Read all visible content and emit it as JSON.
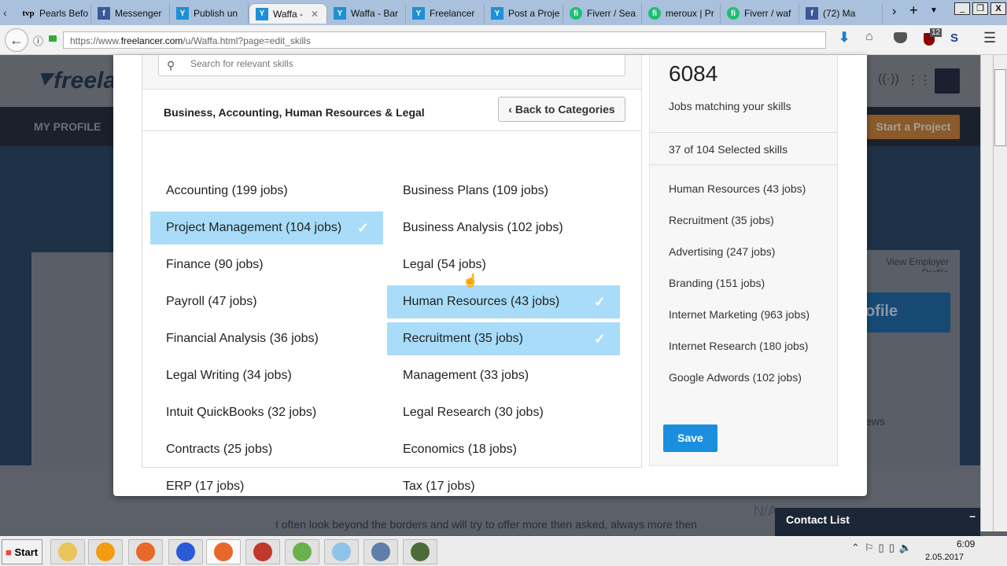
{
  "browser": {
    "tabs": [
      {
        "title": "Pearls Befo",
        "icon": "wp"
      },
      {
        "title": "Messenger",
        "icon": "facebook"
      },
      {
        "title": "Publish un",
        "icon": "freelancer"
      },
      {
        "title": "Waffa -",
        "icon": "freelancer",
        "active": true
      },
      {
        "title": "Waffa - Bar",
        "icon": "freelancer"
      },
      {
        "title": "Freelancer",
        "icon": "freelancer"
      },
      {
        "title": "Post a Proje",
        "icon": "freelancer"
      },
      {
        "title": "Fiverr / Sea",
        "icon": "fiverr"
      },
      {
        "title": "meroux | Pr",
        "icon": "fiverr"
      },
      {
        "title": "Fiverr / waf",
        "icon": "fiverr"
      },
      {
        "title": "(72) Ma",
        "icon": "facebook"
      }
    ],
    "url_prefix": "https://www.",
    "url_domain": "freelancer.com",
    "url_path": "/u/Waffa.html?page=edit_skills",
    "addon_badge": "12"
  },
  "background": {
    "nav_my_profile": "MY PROFILE",
    "start_project": "Start a Project",
    "view_employer_profile": "View Employer Profile",
    "profile_button": "ofile",
    "reviews": "ews",
    "about_text": "I often look beyond the borders and will try to offer more then asked, always more then",
    "na": "N/A",
    "contact_list": "Contact List"
  },
  "modal": {
    "search_placeholder": "Search for relevant skills",
    "category_title": "Business, Accounting, Human Resources & Legal",
    "back_label": "Back to Categories",
    "skills": [
      {
        "label": "Accounting (199 jobs)",
        "selected": false
      },
      {
        "label": "Business Plans (109 jobs)",
        "selected": false
      },
      {
        "label": "Project Management (104 jobs)",
        "selected": true
      },
      {
        "label": "Business Analysis (102 jobs)",
        "selected": false
      },
      {
        "label": "Finance (90 jobs)",
        "selected": false
      },
      {
        "label": "Legal (54 jobs)",
        "selected": false
      },
      {
        "label": "Payroll (47 jobs)",
        "selected": false
      },
      {
        "label": "Human Resources (43 jobs)",
        "selected": true
      },
      {
        "label": "Financial Analysis (36 jobs)",
        "selected": false
      },
      {
        "label": "Recruitment (35 jobs)",
        "selected": true
      },
      {
        "label": "Legal Writing (34 jobs)",
        "selected": false
      },
      {
        "label": "Management (33 jobs)",
        "selected": false
      },
      {
        "label": "Intuit QuickBooks (32 jobs)",
        "selected": false
      },
      {
        "label": "Legal Research (30 jobs)",
        "selected": false
      },
      {
        "label": "Contracts (25 jobs)",
        "selected": false
      },
      {
        "label": "Economics (18 jobs)",
        "selected": false
      },
      {
        "label": "ERP (17 jobs)",
        "selected": false
      },
      {
        "label": "Tax (17 jobs)",
        "selected": false
      }
    ],
    "jobs_count": "6084",
    "jobs_label": "Jobs matching your skills",
    "selected_summary": "37 of 104 Selected skills",
    "selected_skills": [
      "Human Resources (43 jobs)",
      "Recruitment (35 jobs)",
      "Advertising (247 jobs)",
      "Branding (151 jobs)",
      "Internet Marketing (963 jobs)",
      "Internet Research (180 jobs)",
      "Google Adwords (102 jobs)"
    ],
    "save_label": "Save"
  },
  "taskbar": {
    "start": "Start",
    "time": "6:09",
    "date": "2.05.2017"
  },
  "colors": {
    "selected": "#a8dcf8",
    "save": "#1a8fe0",
    "start_project": "#8a5a2a"
  }
}
